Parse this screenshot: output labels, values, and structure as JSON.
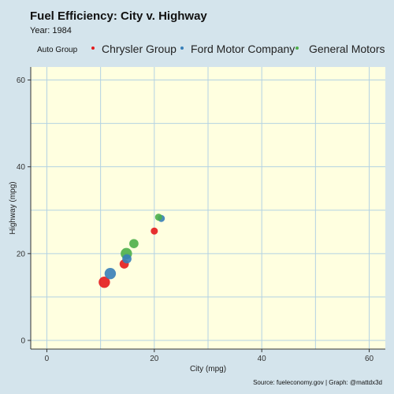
{
  "chart_data": {
    "type": "scatter",
    "title": "Fuel Efficiency: City v. Highway",
    "subtitle": "Year: 1984",
    "xlabel": "City (mpg)",
    "ylabel": "Highway (mpg)",
    "xlim": [
      -3,
      63
    ],
    "ylim": [
      -2,
      63
    ],
    "x_ticks": [
      0,
      20,
      40,
      60
    ],
    "y_ticks": [
      0,
      20,
      40,
      60
    ],
    "grid": true,
    "legend": {
      "title": "Auto Group",
      "placement": "top"
    },
    "series": [
      {
        "name": "Chrysler Group",
        "color": "#e41a1c",
        "points": [
          {
            "x": 10.7,
            "y": 13.4,
            "size": 4
          },
          {
            "x": 14.4,
            "y": 17.6,
            "size": 3
          },
          {
            "x": 20.0,
            "y": 25.2,
            "size": 2
          }
        ]
      },
      {
        "name": "Ford Motor Company",
        "color": "#377eb8",
        "points": [
          {
            "x": 11.8,
            "y": 15.4,
            "size": 4
          },
          {
            "x": 14.9,
            "y": 18.8,
            "size": 3
          },
          {
            "x": 21.3,
            "y": 28.1,
            "size": 2
          }
        ]
      },
      {
        "name": "General Motors",
        "color": "#4daf4a",
        "points": [
          {
            "x": 14.8,
            "y": 20.0,
            "size": 4
          },
          {
            "x": 16.2,
            "y": 22.3,
            "size": 3
          },
          {
            "x": 20.8,
            "y": 28.4,
            "size": 2
          }
        ]
      }
    ]
  },
  "caption": "Source: fueleconomy.gov | Graph: @mattdx3d"
}
